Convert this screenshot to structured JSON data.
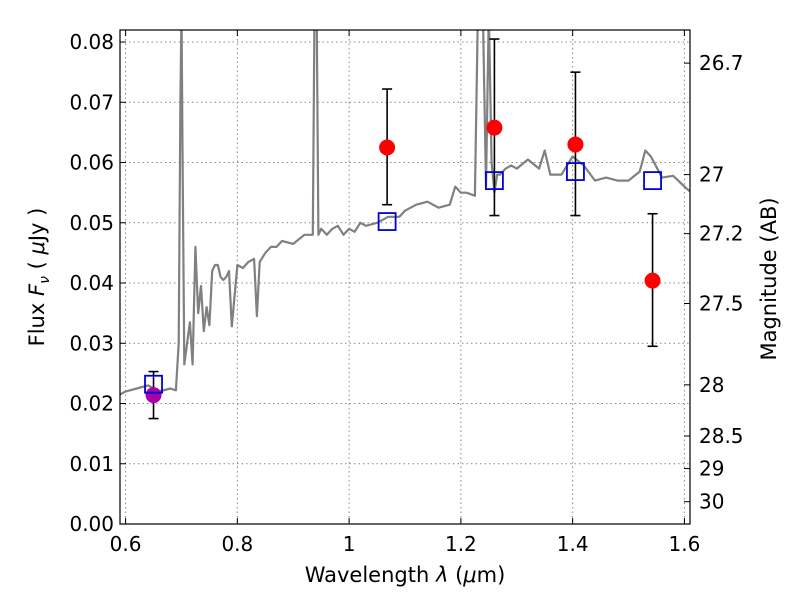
{
  "chart_data": {
    "type": "scatter",
    "title": "",
    "xlabel_text": "Wavelength",
    "xlabel_symbol": "λ",
    "xlabel_unit_open": "(",
    "xlabel_unit_mu": "μ",
    "xlabel_unit_rest": "m)",
    "ylabel_text": "Flux",
    "ylabel_symbol": "F",
    "ylabel_symbol_sub": "ν",
    "ylabel_unit_open": "(",
    "ylabel_unit_mu": "μ",
    "ylabel_unit_rest": "Jy )",
    "y2label": "Magnitude (AB)",
    "xlim": [
      0.59,
      1.61
    ],
    "ylim": [
      0.0,
      0.082
    ],
    "grid": true,
    "xticks": [
      0.6,
      0.8,
      1.0,
      1.2,
      1.4,
      1.6
    ],
    "xtick_labels": [
      "0.6",
      "0.8",
      "1",
      "1.2",
      "1.4",
      "1.6"
    ],
    "yticks": [
      0.0,
      0.01,
      0.02,
      0.03,
      0.04,
      0.05,
      0.06,
      0.07,
      0.08
    ],
    "ytick_labels": [
      "0.00",
      "0.01",
      "0.02",
      "0.03",
      "0.04",
      "0.05",
      "0.06",
      "0.07",
      "0.08"
    ],
    "y2ticks": [
      {
        "label": "26.7",
        "flux": 0.0765
      },
      {
        "label": "27",
        "flux": 0.058
      },
      {
        "label": "27.2",
        "flux": 0.0482
      },
      {
        "label": "27.5",
        "flux": 0.0366
      },
      {
        "label": "28",
        "flux": 0.0231
      },
      {
        "label": "28.5",
        "flux": 0.0146
      },
      {
        "label": "29",
        "flux": 0.0092
      },
      {
        "label": "30",
        "flux": 0.0037
      }
    ],
    "series": [
      {
        "kind": "line",
        "color": "#808080",
        "x": [
          0.59,
          0.6,
          0.62,
          0.64,
          0.66,
          0.68,
          0.69,
          0.695,
          0.698,
          0.7,
          0.702,
          0.705,
          0.71,
          0.715,
          0.72,
          0.725,
          0.73,
          0.735,
          0.74,
          0.745,
          0.75,
          0.755,
          0.76,
          0.765,
          0.77,
          0.775,
          0.78,
          0.785,
          0.79,
          0.8,
          0.81,
          0.82,
          0.83,
          0.835,
          0.84,
          0.85,
          0.86,
          0.87,
          0.88,
          0.9,
          0.92,
          0.935,
          0.938,
          0.94,
          0.942,
          0.945,
          0.95,
          0.96,
          0.97,
          0.98,
          0.99,
          1.0,
          1.01,
          1.02,
          1.03,
          1.05,
          1.07,
          1.09,
          1.1,
          1.12,
          1.14,
          1.16,
          1.18,
          1.19,
          1.2,
          1.21,
          1.225,
          1.23,
          1.232,
          1.24,
          1.245,
          1.25,
          1.255,
          1.26,
          1.265,
          1.27,
          1.28,
          1.29,
          1.3,
          1.32,
          1.34,
          1.35,
          1.36,
          1.38,
          1.4,
          1.42,
          1.44,
          1.46,
          1.48,
          1.5,
          1.52,
          1.53,
          1.54,
          1.56,
          1.58,
          1.6,
          1.61
        ],
        "y": [
          0.0215,
          0.022,
          0.0225,
          0.023,
          0.022,
          0.0225,
          0.0222,
          0.03,
          0.07,
          0.085,
          0.06,
          0.0265,
          0.03,
          0.0335,
          0.0265,
          0.046,
          0.035,
          0.0395,
          0.032,
          0.036,
          0.033,
          0.042,
          0.043,
          0.043,
          0.041,
          0.0405,
          0.041,
          0.042,
          0.0328,
          0.043,
          0.0425,
          0.0435,
          0.044,
          0.0345,
          0.0435,
          0.045,
          0.046,
          0.046,
          0.047,
          0.0465,
          0.048,
          0.048,
          0.085,
          0.0885,
          0.085,
          0.048,
          0.049,
          0.048,
          0.049,
          0.0495,
          0.048,
          0.049,
          0.0485,
          0.05,
          0.0495,
          0.05,
          0.051,
          0.051,
          0.052,
          0.053,
          0.0535,
          0.0525,
          0.053,
          0.056,
          0.055,
          0.055,
          0.0545,
          0.082,
          0.085,
          0.082,
          0.056,
          0.085,
          0.06,
          0.055,
          0.058,
          0.058,
          0.059,
          0.0595,
          0.059,
          0.0605,
          0.059,
          0.062,
          0.058,
          0.058,
          0.061,
          0.0595,
          0.057,
          0.0575,
          0.057,
          0.057,
          0.0585,
          0.062,
          0.061,
          0.0575,
          0.0578,
          0.056,
          0.0552
        ]
      },
      {
        "kind": "points",
        "marker": "circle",
        "color": "#ff0000",
        "x": [
          1.068,
          1.26,
          1.405,
          1.543
        ],
        "y": [
          0.0625,
          0.0658,
          0.063,
          0.0404
        ],
        "err_low": [
          0.053,
          0.0512,
          0.0512,
          0.0295
        ],
        "err_high": [
          0.0722,
          0.0805,
          0.075,
          0.0515
        ]
      },
      {
        "kind": "points",
        "marker": "circle",
        "color": "#aa00aa",
        "x": [
          0.65
        ],
        "y": [
          0.0214
        ],
        "err_low": [
          0.0175
        ],
        "err_high": [
          0.0253
        ]
      },
      {
        "kind": "points",
        "marker": "open-square",
        "color": "#0000dd",
        "x": [
          0.65,
          1.068,
          1.26,
          1.405,
          1.543
        ],
        "y": [
          0.0232,
          0.0502,
          0.057,
          0.0585,
          0.057
        ]
      }
    ]
  }
}
